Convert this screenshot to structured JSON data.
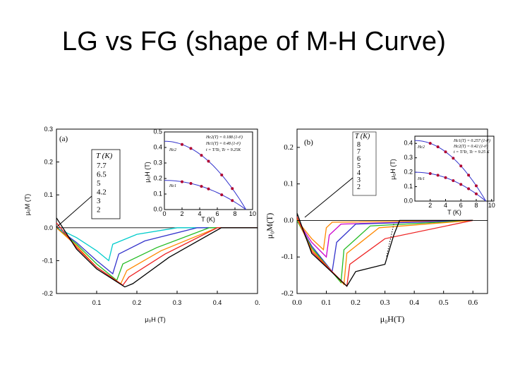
{
  "slide": {
    "title": "LG vs FG (shape of M-H Curve)"
  },
  "panel_a": {
    "tag": "(a)",
    "xlabel": "μ₀H (T)",
    "ylabel": "μ₀M (T)",
    "x_ticks": [
      "0.1",
      "0.2",
      "0.3",
      "0.4",
      "0."
    ],
    "y_ticks": [
      "0.3",
      "0.2",
      "0.1",
      "0.0",
      "-0.1",
      "-0.2"
    ],
    "legend_title": "T (K)",
    "legend": [
      "7.7",
      "6.5",
      "5",
      "4.2",
      "3",
      "2"
    ],
    "inset": {
      "xlabel": "T (K)",
      "ylabel": "μ₀H (T)",
      "x_ticks": [
        "0",
        "2",
        "4",
        "6",
        "8",
        "10"
      ],
      "y_ticks": [
        "0.5",
        "0.4",
        "0.3",
        "0.2",
        "0.1",
        "0.0"
      ],
      "labels": [
        "Hc2",
        "Hc1"
      ],
      "notes": [
        "Hc2(T) = 0.188 (1-t²)",
        "Hc1(T) = 0.48 (1-t²)",
        "t = T/Tc, Tc = 9.25K"
      ]
    }
  },
  "panel_b": {
    "tag": "(b)",
    "xlabel": "μ₀H(T)",
    "ylabel": "μ₀M(T)",
    "x_ticks": [
      "0.0",
      "0.1",
      "0.2",
      "0.3",
      "0.4",
      "0.5",
      "0.6"
    ],
    "y_ticks": [
      "0.2",
      "0.1",
      "0.0",
      "-0.1",
      "-0.2"
    ],
    "legend_title": "T (K)",
    "legend": [
      "8",
      "7",
      "6",
      "5",
      "4",
      "3",
      "2"
    ],
    "inset": {
      "xlabel": "T (K)",
      "ylabel": "μ₀H (T)",
      "x_ticks": [
        "2",
        "4",
        "6",
        "8",
        "10"
      ],
      "y_ticks": [
        "0.4",
        "0.3",
        "0.2",
        "0.1",
        "0.0"
      ],
      "labels": [
        "Hc2",
        "Hc1"
      ],
      "notes": [
        "Hc1(T) = 0.257 (1-t²)",
        "Hc2(T) = 0.42 (1-t²)",
        "t = T/Tc, Tc = 9.25 K"
      ]
    }
  },
  "chart_data": [
    {
      "type": "line",
      "title": "",
      "xlabel": "μ₀H (T)",
      "ylabel": "μ₀M (T)",
      "xlim": [
        0,
        0.5
      ],
      "ylim": [
        -0.2,
        0.3
      ],
      "series": [
        {
          "name": "7.7",
          "color": "#00cccc",
          "points": [
            [
              0,
              0
            ],
            [
              0.05,
              -0.03
            ],
            [
              0.1,
              -0.07
            ],
            [
              0.13,
              -0.1
            ],
            [
              0.14,
              -0.05
            ],
            [
              0.2,
              -0.02
            ],
            [
              0.3,
              0
            ],
            [
              0.5,
              0
            ]
          ]
        },
        {
          "name": "6.5",
          "color": "#3333cc",
          "points": [
            [
              0,
              0
            ],
            [
              0.05,
              -0.045
            ],
            [
              0.1,
              -0.1
            ],
            [
              0.14,
              -0.14
            ],
            [
              0.155,
              -0.08
            ],
            [
              0.22,
              -0.04
            ],
            [
              0.35,
              0
            ],
            [
              0.5,
              0
            ]
          ]
        },
        {
          "name": "5",
          "color": "#22bb22",
          "points": [
            [
              0,
              0
            ],
            [
              0.05,
              -0.05
            ],
            [
              0.1,
              -0.11
            ],
            [
              0.15,
              -0.16
            ],
            [
              0.165,
              -0.11
            ],
            [
              0.25,
              -0.06
            ],
            [
              0.38,
              0
            ],
            [
              0.5,
              0
            ]
          ]
        },
        {
          "name": "4.2",
          "color": "#ff8800",
          "points": [
            [
              0,
              0
            ],
            [
              0.05,
              -0.055
            ],
            [
              0.1,
              -0.12
            ],
            [
              0.16,
              -0.17
            ],
            [
              0.175,
              -0.13
            ],
            [
              0.26,
              -0.07
            ],
            [
              0.4,
              0
            ],
            [
              0.5,
              0
            ]
          ]
        },
        {
          "name": "3",
          "color": "#ee2222",
          "points": [
            [
              0,
              0.015
            ],
            [
              0.05,
              -0.06
            ],
            [
              0.1,
              -0.12
            ],
            [
              0.165,
              -0.175
            ],
            [
              0.18,
              -0.15
            ],
            [
              0.27,
              -0.08
            ],
            [
              0.4,
              0
            ],
            [
              0.5,
              0
            ]
          ]
        },
        {
          "name": "2",
          "color": "#000000",
          "points": [
            [
              0,
              0.03
            ],
            [
              0.05,
              -0.065
            ],
            [
              0.1,
              -0.125
            ],
            [
              0.17,
              -0.18
            ],
            [
              0.19,
              -0.17
            ],
            [
              0.28,
              -0.09
            ],
            [
              0.41,
              0
            ],
            [
              0.5,
              0
            ]
          ]
        }
      ]
    },
    {
      "type": "line",
      "title": "",
      "xlabel": "μ₀H(T)",
      "ylabel": "μ₀M(T)",
      "xlim": [
        0,
        0.65
      ],
      "ylim": [
        -0.2,
        0.25
      ],
      "series": [
        {
          "name": "8",
          "color": "#ff8800",
          "points": [
            [
              0,
              0
            ],
            [
              0.05,
              -0.05
            ],
            [
              0.09,
              -0.08
            ],
            [
              0.1,
              -0.02
            ],
            [
              0.12,
              -0.005
            ],
            [
              0.6,
              0
            ]
          ]
        },
        {
          "name": "7",
          "color": "#cc00cc",
          "points": [
            [
              0,
              0
            ],
            [
              0.05,
              -0.06
            ],
            [
              0.1,
              -0.1
            ],
            [
              0.11,
              -0.04
            ],
            [
              0.15,
              -0.01
            ],
            [
              0.6,
              0
            ]
          ]
        },
        {
          "name": "6",
          "color": "#3333cc",
          "points": [
            [
              0,
              0
            ],
            [
              0.05,
              -0.07
            ],
            [
              0.12,
              -0.14
            ],
            [
              0.135,
              -0.06
            ],
            [
              0.2,
              -0.01
            ],
            [
              0.6,
              0
            ]
          ]
        },
        {
          "name": "5",
          "color": "#22bb22",
          "points": [
            [
              0,
              0
            ],
            [
              0.05,
              -0.075
            ],
            [
              0.15,
              -0.17
            ],
            [
              0.16,
              -0.08
            ],
            [
              0.25,
              -0.015
            ],
            [
              0.6,
              0
            ]
          ]
        },
        {
          "name": "4",
          "color": "#ff8800",
          "points": [
            [
              0,
              0.005
            ],
            [
              0.05,
              -0.08
            ],
            [
              0.16,
              -0.175
            ],
            [
              0.17,
              -0.09
            ],
            [
              0.28,
              -0.02
            ],
            [
              0.6,
              0
            ]
          ]
        },
        {
          "name": "3",
          "color": "#ee2222",
          "points": [
            [
              0,
              0.01
            ],
            [
              0.05,
              -0.085
            ],
            [
              0.17,
              -0.18
            ],
            [
              0.18,
              -0.12
            ],
            [
              0.3,
              -0.05
            ],
            [
              0.6,
              0
            ]
          ]
        },
        {
          "name": "2",
          "color": "#000000",
          "points": [
            [
              0,
              0.02
            ],
            [
              0.05,
              -0.09
            ],
            [
              0.17,
              -0.18
            ],
            [
              0.2,
              -0.14
            ],
            [
              0.3,
              -0.12
            ],
            [
              0.33,
              -0.04
            ],
            [
              0.35,
              0
            ],
            [
              0.6,
              0
            ]
          ]
        }
      ]
    }
  ]
}
